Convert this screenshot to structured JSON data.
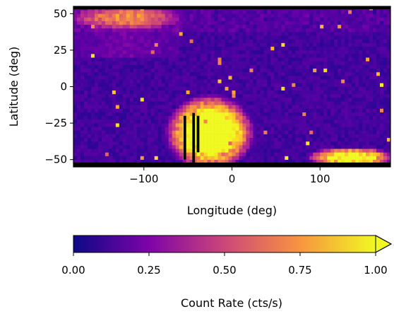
{
  "chart_data": [
    {
      "type": "heatmap",
      "title": "",
      "xlabel": "Longitude (deg)",
      "ylabel": "Latitude (deg)",
      "xlim": [
        -180,
        180
      ],
      "ylim": [
        -55,
        55
      ],
      "xticks": [
        -100,
        0,
        100
      ],
      "xtick_labels": [
        "−100",
        "0",
        "100"
      ],
      "yticks": [
        50,
        25,
        0,
        -25,
        -50
      ],
      "ytick_labels": [
        "50",
        "25",
        "0",
        "−25",
        "−50"
      ],
      "grid": false,
      "colormap": "plasma",
      "vmin": 0.0,
      "vmax": 1.0,
      "no_data_color": "#000000",
      "features": [
        {
          "label": "South Atlantic Anomaly",
          "lon_range": [
            -70,
            20
          ],
          "lat_range": [
            -55,
            -8
          ],
          "peak": 1.0
        },
        {
          "label": "southern high-latitude band",
          "lon_range": [
            90,
            180
          ],
          "lat_range": [
            -55,
            -42
          ],
          "peak": 0.8
        },
        {
          "label": "northern high-latitude edge",
          "lon_range": [
            -180,
            -60
          ],
          "lat_range": [
            40,
            55
          ],
          "peak": 0.35
        }
      ]
    },
    {
      "type": "colorbar",
      "label": "Count Rate (cts/s)",
      "range": [
        0.0,
        1.0
      ],
      "ticks": [
        0.0,
        0.25,
        0.5,
        0.75,
        1.0
      ],
      "tick_labels": [
        "0.00",
        "0.25",
        "0.50",
        "0.75",
        "1.00"
      ],
      "extend": "max",
      "colormap": "plasma"
    }
  ]
}
